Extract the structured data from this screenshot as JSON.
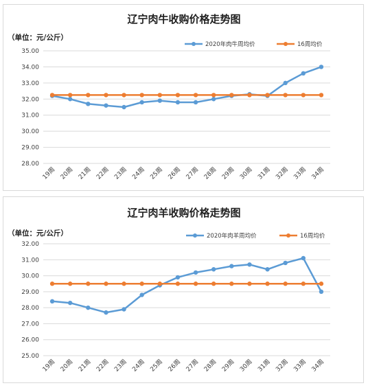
{
  "chart_data": [
    {
      "type": "line",
      "title": "辽宁肉牛收购价格走势图",
      "unit_label": "（单位：元/公斤）",
      "categories": [
        "19周",
        "20周",
        "21周",
        "22周",
        "23周",
        "24周",
        "25周",
        "26周",
        "27周",
        "28周",
        "29周",
        "30周",
        "31周",
        "32周",
        "33周",
        "34周"
      ],
      "yticks": [
        "28.00",
        "29.00",
        "30.00",
        "31.00",
        "32.00",
        "33.00",
        "34.00",
        "35.00"
      ],
      "ylim": [
        28,
        35
      ],
      "grid": true,
      "legend_position": "top-right",
      "series": [
        {
          "name": "2020年肉牛周均价",
          "color": "#5b9bd5",
          "values": [
            32.2,
            32.0,
            31.7,
            31.6,
            31.5,
            31.8,
            31.9,
            31.8,
            31.8,
            32.0,
            32.2,
            32.3,
            32.2,
            33.0,
            33.6,
            34.0
          ]
        },
        {
          "name": "16周均价",
          "color": "#ed7d31",
          "values": [
            32.25,
            32.25,
            32.25,
            32.25,
            32.25,
            32.25,
            32.25,
            32.25,
            32.25,
            32.25,
            32.25,
            32.25,
            32.25,
            32.25,
            32.25,
            32.25
          ]
        }
      ]
    },
    {
      "type": "line",
      "title": "辽宁肉羊收购价格走势图",
      "unit_label": "（单位：元/公斤）",
      "categories": [
        "19周",
        "20周",
        "21周",
        "22周",
        "23周",
        "24周",
        "25周",
        "26周",
        "27周",
        "28周",
        "29周",
        "30周",
        "31周",
        "32周",
        "33周",
        "34周"
      ],
      "yticks": [
        "25.00",
        "26.00",
        "27.00",
        "28.00",
        "29.00",
        "30.00",
        "31.00",
        "32.00"
      ],
      "ylim": [
        25,
        32
      ],
      "grid": true,
      "legend_position": "top-right",
      "series": [
        {
          "name": "2020年肉羊周均价",
          "color": "#5b9bd5",
          "values": [
            28.4,
            28.3,
            28.0,
            27.7,
            27.9,
            28.8,
            29.4,
            29.9,
            30.2,
            30.4,
            30.6,
            30.7,
            30.4,
            30.8,
            31.1,
            29.0
          ]
        },
        {
          "name": "16周均价",
          "color": "#ed7d31",
          "values": [
            29.5,
            29.5,
            29.5,
            29.5,
            29.5,
            29.5,
            29.5,
            29.5,
            29.5,
            29.5,
            29.5,
            29.5,
            29.5,
            29.5,
            29.5,
            29.5
          ]
        }
      ]
    }
  ]
}
